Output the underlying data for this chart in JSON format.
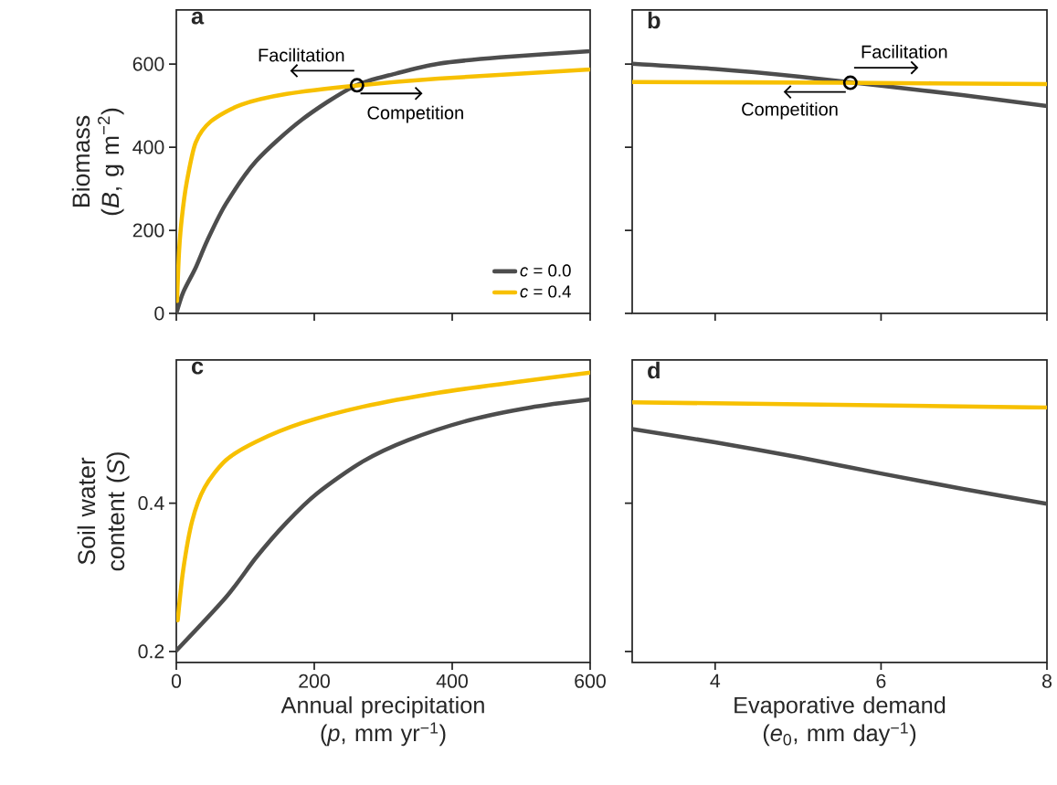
{
  "chart_data": [
    {
      "type": "line",
      "title": "a",
      "ylabel": "Biomass (*B*, g m$^{−2}$)",
      "xlim": [
        0,
        600
      ],
      "ylim": [
        0,
        730
      ],
      "xticks": [
        0,
        200,
        400,
        600
      ],
      "yticks": [
        0,
        200,
        400,
        600
      ],
      "tick_labels": "y",
      "legend": "bottom right",
      "series": [
        {
          "name": "*c* = 0.0",
          "color": "#4d4d4d",
          "x": [
            0,
            10,
            28,
            45,
            72,
            116,
            182,
            257,
            320,
            380,
            469,
            600
          ],
          "values": [
            0,
            51,
            110,
            176,
            264,
            367,
            466,
            546,
            578,
            601,
            616,
            631
          ]
        },
        {
          "name": "*c* = 0.4",
          "color": "#f7c000",
          "x": [
            1,
            4,
            8,
            15,
            28,
            50,
            94,
            160,
            260,
            380,
            600
          ],
          "values": [
            30,
            150,
            230,
            315,
            411,
            462,
            502,
            528,
            548,
            565,
            587
          ]
        },
        {
          "type": "scatter",
          "marker": "circle",
          "color": "#000000",
          "x": [
            262
          ],
          "values": [
            549
          ]
        }
      ],
      "annotations": [
        "Facilitation",
        "Competition"
      ]
    },
    {
      "type": "line",
      "title": "b",
      "xlim": [
        3,
        8
      ],
      "ylim": [
        0,
        730
      ],
      "xticks": [
        4,
        6,
        8
      ],
      "yticks": [
        0,
        200,
        400,
        600
      ],
      "tick_labels": false,
      "series": [
        {
          "color": "#4d4d4d",
          "x": [
            3,
            4,
            5,
            6,
            7,
            8
          ],
          "values": [
            601,
            588,
            570,
            548,
            525,
            499
          ]
        },
        {
          "color": "#f7c000",
          "x": [
            3,
            5.5,
            8
          ],
          "values": [
            557,
            555,
            552
          ]
        },
        {
          "type": "scatter",
          "marker": "circle",
          "color": "#000000",
          "x": [
            5.63
          ],
          "values": [
            555
          ]
        }
      ],
      "annotations": [
        "Facilitation",
        "Competition"
      ]
    },
    {
      "type": "line",
      "title": "c",
      "xlabel": "Annual precipitation (*p*, mm yr$^{−1}$)",
      "ylabel": "Soil water content (*S*)",
      "xlim": [
        0,
        600
      ],
      "ylim": [
        0.185,
        0.593
      ],
      "xticks": [
        0,
        200,
        400,
        600
      ],
      "yticks": [
        0.2,
        0.4
      ],
      "series": [
        {
          "color": "#4d4d4d",
          "x": [
            0,
            72,
            116,
            160,
            204,
            270,
            336,
            425,
            513,
            600
          ],
          "values": [
            0.201,
            0.273,
            0.327,
            0.374,
            0.413,
            0.456,
            0.485,
            0.512,
            0.529,
            0.54
          ]
        },
        {
          "color": "#f7c000",
          "x": [
            2,
            10,
            23,
            41,
            72,
            116,
            182,
            270,
            380,
            491,
            600
          ],
          "values": [
            0.242,
            0.31,
            0.376,
            0.421,
            0.458,
            0.483,
            0.508,
            0.53,
            0.549,
            0.563,
            0.576
          ]
        }
      ]
    },
    {
      "type": "line",
      "title": "d",
      "xlabel": "Evaporative demand (*e*$_{0}$, mm day$^{−1}$)",
      "xlim": [
        3,
        8
      ],
      "ylim": [
        0.185,
        0.593
      ],
      "xticks": [
        4,
        6,
        8
      ],
      "yticks": [
        0.2,
        0.4
      ],
      "tick_labels": "x",
      "series": [
        {
          "color": "#4d4d4d",
          "x": [
            3,
            4,
            5,
            6,
            7,
            8
          ],
          "values": [
            0.5,
            0.482,
            0.462,
            0.44,
            0.419,
            0.399
          ]
        },
        {
          "color": "#f7c000",
          "x": [
            3,
            8
          ],
          "values": [
            0.536,
            0.529
          ]
        }
      ]
    }
  ]
}
